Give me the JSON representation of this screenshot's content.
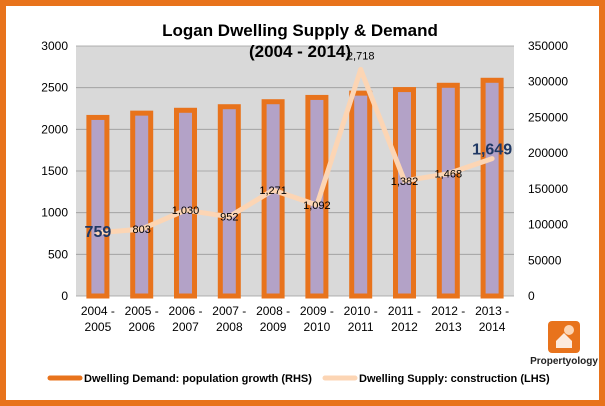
{
  "chart_data": {
    "type": "bar",
    "title": "Logan Dwelling Supply & Demand",
    "subtitle": "(2004 - 2014)",
    "categories": [
      [
        "2004 -",
        "2005"
      ],
      [
        "2005 -",
        "2006"
      ],
      [
        "2006 -",
        "2007"
      ],
      [
        "2007 -",
        "2008"
      ],
      [
        "2008 -",
        "2009"
      ],
      [
        "2009 -",
        "2010"
      ],
      [
        "2010 -",
        "2011"
      ],
      [
        "2011 -",
        "2012"
      ],
      [
        "2012 -",
        "2013"
      ],
      [
        "2013 -",
        "2014"
      ]
    ],
    "y_left": {
      "range": [
        0,
        3000
      ],
      "ticks": [
        "0",
        "500",
        "1000",
        "1500",
        "2000",
        "2500",
        "3000"
      ]
    },
    "y_right": {
      "range": [
        0,
        350000
      ],
      "ticks": [
        "0",
        "50000",
        "100000",
        "150000",
        "200000",
        "250000",
        "300000",
        "350000"
      ]
    },
    "grid": true,
    "legend_placement": "bottom",
    "series": [
      {
        "name": "Dwelling Demand: population growth (RHS)",
        "kind": "bar",
        "axis": "right",
        "values": [
          250000,
          256000,
          260000,
          265000,
          272000,
          278000,
          284000,
          289000,
          295000,
          302000
        ],
        "color": "#e8731c",
        "fill": "#b3a2c7"
      },
      {
        "name": "Dwelling Supply: construction (LHS)",
        "kind": "line",
        "axis": "left",
        "values": [
          759,
          803,
          1030,
          952,
          1271,
          1092,
          2718,
          1382,
          1468,
          1649
        ],
        "labels": [
          "759",
          "803",
          "1,030",
          "952",
          "1,271",
          "1,092",
          "2,718",
          "1,382",
          "1,468",
          "1,649"
        ],
        "color": "#fcd5b4"
      }
    ]
  },
  "logo": {
    "label": "Propertyology",
    "color": "#e8731c"
  },
  "colors": {
    "border": "#e8731c",
    "plot_bg": "#d9d9d9",
    "highlight_label": "#1f3864"
  }
}
